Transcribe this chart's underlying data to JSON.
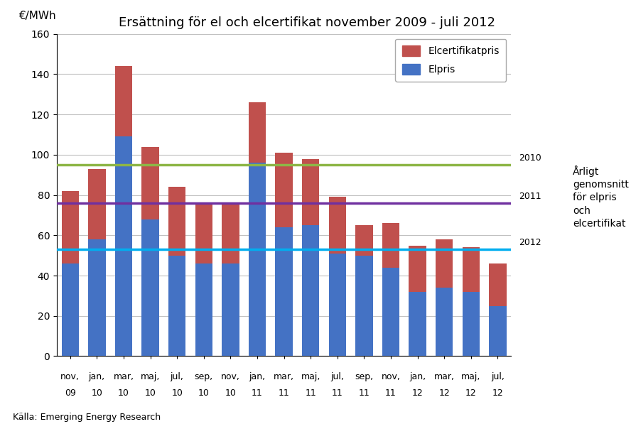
{
  "title": "Ersättning för el och elcertifikat november 2009 - juli 2012",
  "ylabel": "€/MWh",
  "source": "Källa: Emerging Energy Research",
  "categories_line1": [
    "nov,",
    "jan,",
    "mar,",
    "maj,",
    "jul,",
    "sep,",
    "nov,",
    "jan,",
    "mar,",
    "maj,",
    "jul,",
    "sep,",
    "nov,",
    "jan,",
    "mar,",
    "maj,",
    "jul,"
  ],
  "categories_line2": [
    "09",
    "10",
    "10",
    "10",
    "10",
    "10",
    "10",
    "11",
    "11",
    "11",
    "11",
    "11",
    "11",
    "12",
    "12",
    "12",
    "12"
  ],
  "elpris": [
    46,
    58,
    109,
    68,
    50,
    46,
    46,
    96,
    64,
    65,
    51,
    50,
    44,
    32,
    34,
    32,
    25
  ],
  "elcert": [
    36,
    35,
    35,
    36,
    34,
    30,
    30,
    30,
    37,
    33,
    28,
    15,
    22,
    23,
    24,
    22,
    21
  ],
  "elpris_color": "#4472C4",
  "elcert_color": "#C0504D",
  "avg_2010": 95,
  "avg_2010_color": "#8DB646",
  "avg_2011": 76,
  "avg_2011_color": "#7030A0",
  "avg_2012": 53,
  "avg_2012_color": "#00AEEF",
  "ylim": [
    0,
    160
  ],
  "yticks": [
    0,
    20,
    40,
    60,
    80,
    100,
    120,
    140,
    160
  ],
  "legend_label_elcert": "Elcertifikatpris",
  "legend_label_elpris": "Elpris",
  "avg_label_2010": "2010",
  "avg_label_2011": "2011",
  "avg_label_2012": "2012",
  "right_label": "Årligt\ngenomsnitt\nför elpris\noch\nelcertifikat",
  "background_color": "#FFFFFF",
  "grid_color": "#C0C0C0"
}
